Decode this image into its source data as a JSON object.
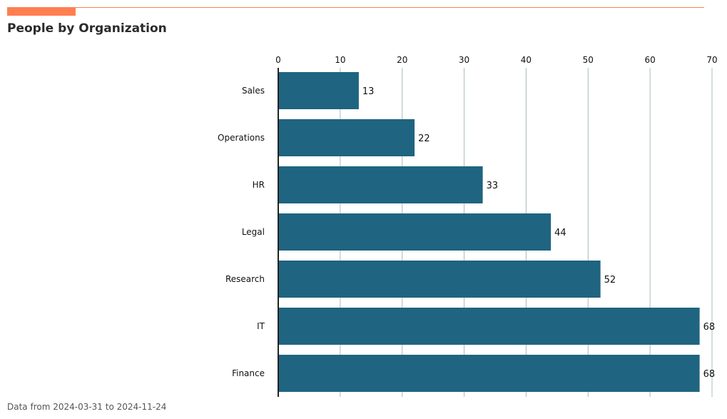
{
  "header": {
    "title": "People by Organization"
  },
  "footer": {
    "note": "Data from 2024-03-31 to 2024-11-24"
  },
  "colors": {
    "accent": "#ff7f50",
    "bar": "#1f6480",
    "grid": "#a9bcbc",
    "axis": "#222222",
    "text": "#111111"
  },
  "chart_data": {
    "type": "bar",
    "orientation": "horizontal",
    "categories": [
      "Sales",
      "Operations",
      "HR",
      "Legal",
      "Research",
      "IT",
      "Finance"
    ],
    "values": [
      13,
      22,
      33,
      44,
      52,
      68,
      68
    ],
    "xlim": [
      0,
      70
    ],
    "xticks": [
      0,
      10,
      20,
      30,
      40,
      50,
      60,
      70
    ],
    "x_axis_position": "top",
    "grid": "vertical",
    "legend": "none"
  }
}
